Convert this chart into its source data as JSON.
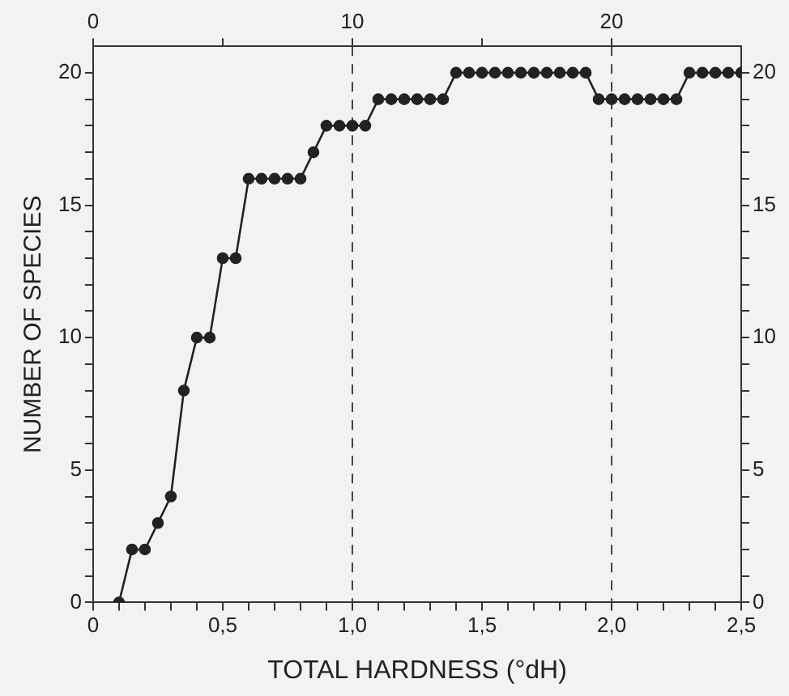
{
  "chart_data": {
    "type": "line",
    "xlabel": "TOTAL HARDNESS (°dH)",
    "ylabel": "NUMBER OF SPECIES",
    "x": [
      0.1,
      0.15,
      0.2,
      0.25,
      0.3,
      0.35,
      0.4,
      0.45,
      0.5,
      0.55,
      0.6,
      0.65,
      0.7,
      0.75,
      0.8,
      0.85,
      0.9,
      0.95,
      1.0,
      1.05,
      1.1,
      1.15,
      1.2,
      1.25,
      1.3,
      1.35,
      1.4,
      1.45,
      1.5,
      1.55,
      1.6,
      1.65,
      1.7,
      1.75,
      1.8,
      1.85,
      1.9,
      1.95,
      2.0,
      2.05,
      2.1,
      2.15,
      2.2,
      2.25,
      2.3,
      2.35,
      2.4,
      2.45,
      2.5
    ],
    "series": [
      {
        "color": "#222222",
        "values": [
          0,
          2,
          2,
          3,
          4,
          8,
          10,
          10,
          13,
          13,
          16,
          16,
          16,
          16,
          16,
          17,
          18,
          18,
          18,
          18,
          19,
          19,
          19,
          19,
          19,
          19,
          20,
          20,
          20,
          20,
          20,
          20,
          20,
          20,
          20,
          20,
          20,
          19,
          19,
          19,
          19,
          19,
          19,
          19,
          20,
          20,
          20,
          20,
          20
        ]
      }
    ],
    "xlim": [
      0,
      2.5
    ],
    "xticks": [
      {
        "value": 0,
        "label": "0"
      },
      {
        "value": 0.1,
        "label": null
      },
      {
        "value": 0.2,
        "label": null
      },
      {
        "value": 0.3,
        "label": null
      },
      {
        "value": 0.4,
        "label": null
      },
      {
        "value": 0.5,
        "label": "0,5"
      },
      {
        "value": 0.6,
        "label": null
      },
      {
        "value": 0.7,
        "label": null
      },
      {
        "value": 0.8,
        "label": null
      },
      {
        "value": 0.9,
        "label": null
      },
      {
        "value": 1.0,
        "label": "1,0"
      },
      {
        "value": 1.1,
        "label": null
      },
      {
        "value": 1.2,
        "label": null
      },
      {
        "value": 1.3,
        "label": null
      },
      {
        "value": 1.4,
        "label": null
      },
      {
        "value": 1.5,
        "label": "1,5"
      },
      {
        "value": 1.6,
        "label": null
      },
      {
        "value": 1.7,
        "label": null
      },
      {
        "value": 1.8,
        "label": null
      },
      {
        "value": 1.9,
        "label": null
      },
      {
        "value": 2.0,
        "label": "2,0"
      },
      {
        "value": 2.1,
        "label": null
      },
      {
        "value": 2.2,
        "label": null
      },
      {
        "value": 2.3,
        "label": null
      },
      {
        "value": 2.4,
        "label": null
      },
      {
        "value": 2.5,
        "label": "2,5"
      }
    ],
    "x2lim": [
      0,
      25
    ],
    "x2ticks": [
      0,
      {
        "value": 5,
        "label": null
      },
      10,
      {
        "value": 15,
        "label": null
      },
      20
    ],
    "ylim": [
      0,
      21
    ],
    "yticks": [
      0,
      {
        "value": 1,
        "label": null
      },
      {
        "value": 2,
        "label": null
      },
      {
        "value": 3,
        "label": null
      },
      {
        "value": 4,
        "label": null
      },
      5,
      {
        "value": 6,
        "label": null
      },
      {
        "value": 7,
        "label": null
      },
      {
        "value": 8,
        "label": null
      },
      {
        "value": 9,
        "label": null
      },
      10,
      {
        "value": 11,
        "label": null
      },
      {
        "value": 12,
        "label": null
      },
      {
        "value": 13,
        "label": null
      },
      {
        "value": 14,
        "label": null
      },
      15,
      {
        "value": 16,
        "label": null
      },
      {
        "value": 17,
        "label": null
      },
      {
        "value": 18,
        "label": null
      },
      {
        "value": 19,
        "label": null
      },
      20
    ],
    "y2lim": [
      0,
      21
    ],
    "y2ticks": [
      0,
      {
        "value": 1,
        "label": null
      },
      {
        "value": 2,
        "label": null
      },
      {
        "value": 3,
        "label": null
      },
      {
        "value": 4,
        "label": null
      },
      5,
      {
        "value": 6,
        "label": null
      },
      {
        "value": 7,
        "label": null
      },
      {
        "value": 8,
        "label": null
      },
      {
        "value": 9,
        "label": null
      },
      10,
      {
        "value": 11,
        "label": null
      },
      {
        "value": 12,
        "label": null
      },
      {
        "value": 13,
        "label": null
      },
      {
        "value": 14,
        "label": null
      },
      15,
      {
        "value": 16,
        "label": null
      },
      {
        "value": 17,
        "label": null
      },
      {
        "value": 18,
        "label": null
      },
      {
        "value": 19,
        "label": null
      },
      20
    ],
    "ref_lines": [
      {
        "axis": "x",
        "value": 1.0,
        "line_style": "dashed",
        "color": "#444444"
      },
      {
        "axis": "x",
        "value": 2.0,
        "line_style": "dashed",
        "color": "#444444"
      }
    ],
    "grid": false,
    "legend": false,
    "marker": "circle",
    "line_style": "solid"
  }
}
